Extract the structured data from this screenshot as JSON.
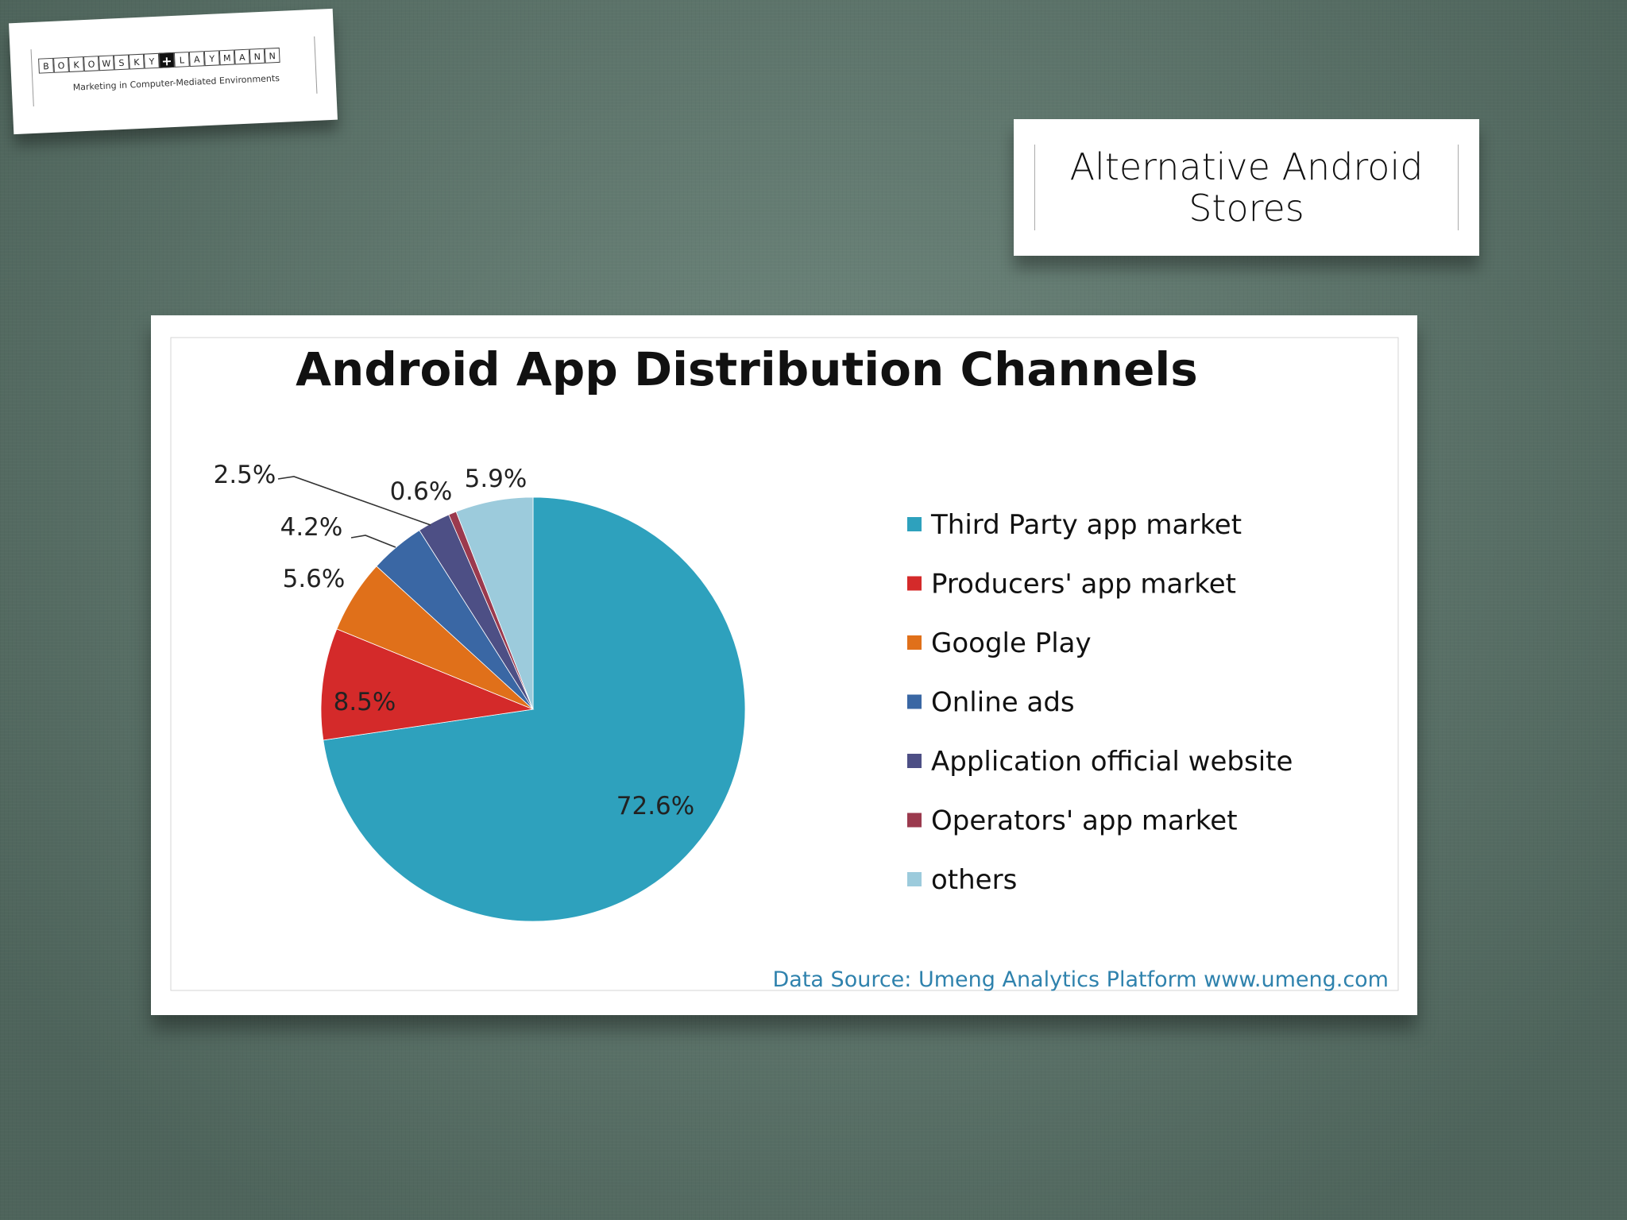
{
  "logo": {
    "letters_left": [
      "B",
      "O",
      "K",
      "O",
      "W",
      "S",
      "K",
      "Y"
    ],
    "plus": "+",
    "letters_right": [
      "L",
      "A",
      "Y",
      "M",
      "A",
      "N",
      "N"
    ],
    "tagline": "Marketing in Computer-Mediated Environments"
  },
  "slide": {
    "title_line1": "Alternative Android",
    "title_line2": "Stores"
  },
  "chart_data": {
    "type": "pie",
    "title": "Android App Distribution Channels",
    "source": "Data Source: Umeng Analytics Platform www.umeng.com",
    "legend_position": "right",
    "slices": [
      {
        "name": "Third Party app market",
        "value": 72.6,
        "label": "72.6%",
        "color": "#2ea1bd"
      },
      {
        "name": "Producers' app market",
        "value": 8.5,
        "label": "8.5%",
        "color": "#d42a2a"
      },
      {
        "name": "Google Play",
        "value": 5.6,
        "label": "5.6%",
        "color": "#e0701a"
      },
      {
        "name": "Online ads",
        "value": 4.2,
        "label": "4.2%",
        "color": "#3a67a4"
      },
      {
        "name": "Application official website",
        "value": 2.5,
        "label": "2.5%",
        "color": "#4d4f85"
      },
      {
        "name": "Operators' app market",
        "value": 0.6,
        "label": "0.6%",
        "color": "#9b3a4e"
      },
      {
        "name": "others",
        "value": 5.9,
        "label": "5.9%",
        "color": "#9ccbdc"
      }
    ]
  }
}
